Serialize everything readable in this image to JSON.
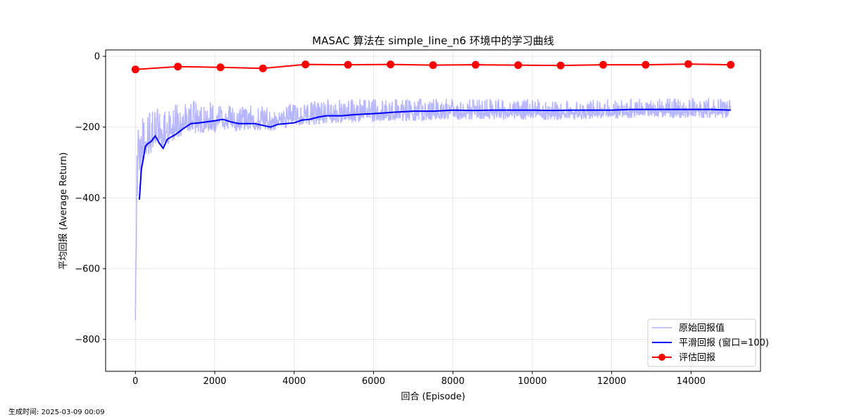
{
  "chart_data": {
    "type": "line",
    "title": "MASAC 算法在 simple_line_n6 环境中的学习曲线",
    "xlabel": "回合 (Episode)",
    "ylabel": "平均回报 (Average Return)",
    "xlim": [
      -750,
      15750
    ],
    "ylim": [
      -890,
      18
    ],
    "x_ticks": [
      0,
      2000,
      4000,
      6000,
      8000,
      10000,
      12000,
      14000
    ],
    "y_ticks": [
      0,
      -200,
      -400,
      -600,
      -800
    ],
    "grid": true,
    "legend_position": "lower-right",
    "legend": [
      "原始回报值",
      "平滑回报 (窗口=100)",
      "评估回报"
    ],
    "series": [
      {
        "name": "原始回报值",
        "color": "#b3b3ff",
        "style": "line",
        "x": [
          0,
          30,
          60,
          100,
          150,
          200,
          300,
          400,
          500,
          600,
          700,
          800,
          900,
          1000,
          1200,
          1500,
          2000,
          2500,
          3000,
          3500,
          4000,
          4500,
          5000,
          5500,
          6000,
          6500,
          7000,
          8000,
          9000,
          10000,
          11000,
          12000,
          13000,
          14000,
          15000
        ],
        "y_low": [
          -850,
          -650,
          -480,
          -440,
          -400,
          -370,
          -340,
          -330,
          -320,
          -315,
          -310,
          -300,
          -290,
          -280,
          -270,
          -260,
          -250,
          -245,
          -240,
          -240,
          -230,
          -225,
          -220,
          -215,
          -215,
          -210,
          -210,
          -205,
          -205,
          -205,
          -205,
          -200,
          -200,
          -200,
          -200
        ],
        "y_high": [
          -500,
          -300,
          -200,
          -180,
          -175,
          -170,
          -160,
          -155,
          -150,
          -145,
          -140,
          -135,
          -130,
          -125,
          -125,
          -125,
          -130,
          -135,
          -140,
          -140,
          -130,
          -125,
          -120,
          -120,
          -115,
          -120,
          -120,
          -120,
          -120,
          -120,
          -120,
          -120,
          -120,
          -115,
          -120
        ]
      },
      {
        "name": "平滑回报 (窗口=100)",
        "color": "#0000ff",
        "style": "line",
        "x": [
          100,
          150,
          200,
          250,
          300,
          400,
          500,
          600,
          700,
          800,
          900,
          1000,
          1200,
          1400,
          1600,
          1800,
          2000,
          2200,
          2400,
          2600,
          2800,
          3000,
          3200,
          3400,
          3600,
          3800,
          4000,
          4200,
          4400,
          4600,
          4800,
          5000,
          5200,
          5500,
          6000,
          6500,
          7000,
          7500,
          8000,
          8500,
          9000,
          9500,
          10000,
          10500,
          11000,
          11500,
          12000,
          12500,
          13000,
          13500,
          14000,
          14500,
          15000
        ],
        "y": [
          -405,
          -320,
          -290,
          -255,
          -248,
          -240,
          -225,
          -245,
          -260,
          -235,
          -228,
          -222,
          -205,
          -190,
          -188,
          -185,
          -182,
          -178,
          -185,
          -190,
          -190,
          -190,
          -195,
          -200,
          -192,
          -190,
          -188,
          -180,
          -178,
          -172,
          -168,
          -168,
          -168,
          -165,
          -162,
          -158,
          -155,
          -155,
          -152,
          -153,
          -152,
          -152,
          -152,
          -153,
          -152,
          -152,
          -152,
          -150,
          -150,
          -150,
          -150,
          -150,
          -152
        ]
      },
      {
        "name": "评估回报",
        "color": "#ff0000",
        "style": "line-marker",
        "x": [
          0,
          1071,
          2143,
          3214,
          4286,
          5357,
          6429,
          7500,
          8571,
          9643,
          10714,
          11786,
          12857,
          13929,
          15000
        ],
        "y": [
          -37,
          -29,
          -31,
          -34,
          -23,
          -24,
          -23,
          -25,
          -24,
          -25,
          -26,
          -24,
          -24,
          -22,
          -24
        ]
      }
    ]
  },
  "footer": {
    "generated": "生成时间: 2025-03-09 00:09"
  }
}
